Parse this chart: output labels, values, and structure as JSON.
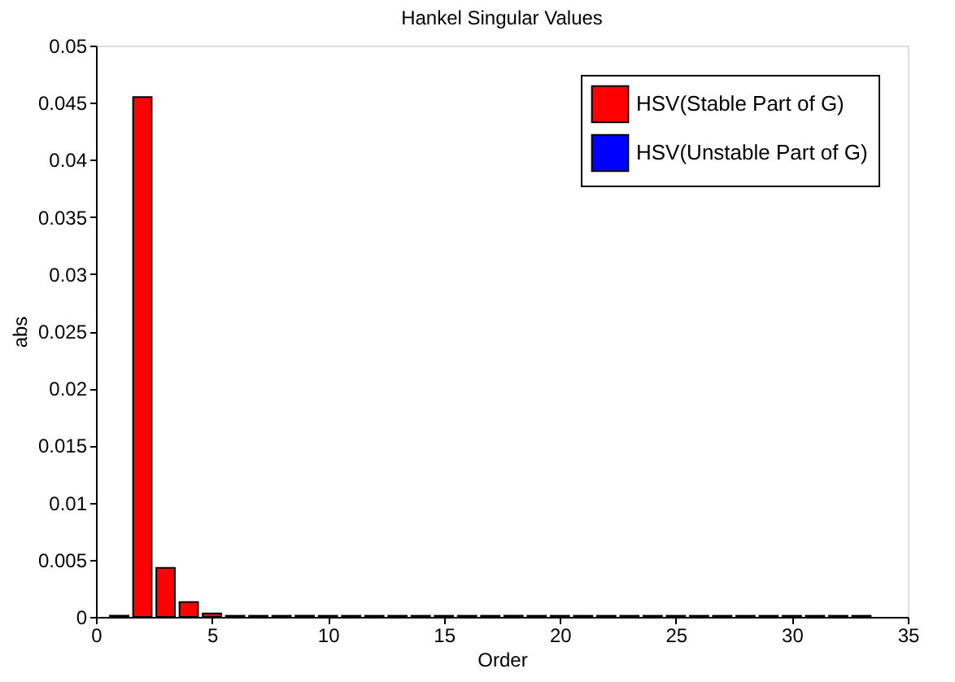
{
  "chart_data": {
    "type": "bar",
    "title": "Hankel Singular Values",
    "xlabel": "Order",
    "ylabel": "abs",
    "series": [
      {
        "name": "HSV(Stable Part of G)",
        "color": "#ff0000",
        "x": [
          2,
          3,
          4,
          5,
          6,
          7,
          8,
          9,
          10,
          11,
          12,
          13,
          14,
          15,
          16,
          17,
          18,
          19,
          20,
          21,
          22,
          23,
          24,
          25,
          26,
          27,
          28,
          29,
          30,
          31,
          32,
          33
        ],
        "values": [
          0.0455,
          0.0043,
          0.0013,
          0.0003,
          0.0001,
          0.0001,
          0.0001,
          0.0001,
          0.0001,
          0.0001,
          0.0001,
          0.0001,
          0.0001,
          0.0001,
          0.0001,
          0.0001,
          0.0001,
          0.0001,
          0.0001,
          0.0001,
          0.0001,
          0.0001,
          0.0001,
          0.0001,
          0.0001,
          0.0001,
          0.0001,
          0.0001,
          0.0001,
          0.0001,
          0.0001,
          0.0001
        ]
      },
      {
        "name": "HSV(Unstable Part of G)",
        "color": "#0000ff",
        "x": [
          1
        ],
        "values": [
          0.0001
        ]
      }
    ],
    "xlim": [
      0,
      35
    ],
    "xticks": [
      0,
      5,
      10,
      15,
      20,
      25,
      30,
      35
    ],
    "ylim": [
      0,
      0.05
    ],
    "yticks": [
      0,
      0.005,
      0.01,
      0.015,
      0.02,
      0.025,
      0.03,
      0.035,
      0.04,
      0.045,
      0.05
    ],
    "grid": false,
    "legend": "top right"
  }
}
